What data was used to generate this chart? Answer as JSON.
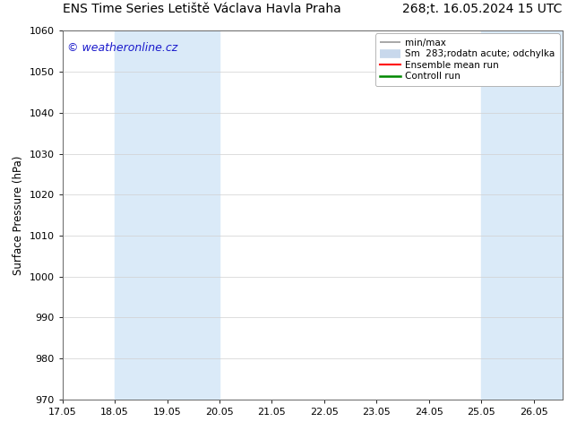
{
  "title_left": "ENS Time Series Letiště Václava Havla Praha",
  "title_right": "268;t. 16.05.2024 15 UTC",
  "ylabel": "Surface Pressure (hPa)",
  "watermark": "© weatheronline.cz",
  "watermark_color": "#1a1acc",
  "ylim": [
    970,
    1060
  ],
  "yticks": [
    970,
    980,
    990,
    1000,
    1010,
    1020,
    1030,
    1040,
    1050,
    1060
  ],
  "xtick_labels": [
    "17.05",
    "18.05",
    "19.05",
    "20.05",
    "21.05",
    "22.05",
    "23.05",
    "24.05",
    "25.05",
    "26.05"
  ],
  "background_color": "#ffffff",
  "plot_bg_color": "#ffffff",
  "shaded_bands": [
    {
      "xmin": 18.0,
      "xmax": 20.0,
      "color": "#daeaf8"
    },
    {
      "xmin": 25.0,
      "xmax": 26.0,
      "color": "#daeaf8"
    },
    {
      "xmin": 26.0,
      "xmax": 26.55,
      "color": "#daeaf8"
    }
  ],
  "legend_labels": [
    "min/max",
    "Sm  283;rodatn acute; odchylka",
    "Ensemble mean run",
    "Controll run"
  ],
  "legend_colors_line": [
    "#999999",
    "#c8d8ec",
    "#ff0000",
    "#008800"
  ],
  "title_fontsize": 10,
  "ylabel_fontsize": 8.5,
  "tick_fontsize": 8,
  "legend_fontsize": 7.5,
  "watermark_fontsize": 9
}
